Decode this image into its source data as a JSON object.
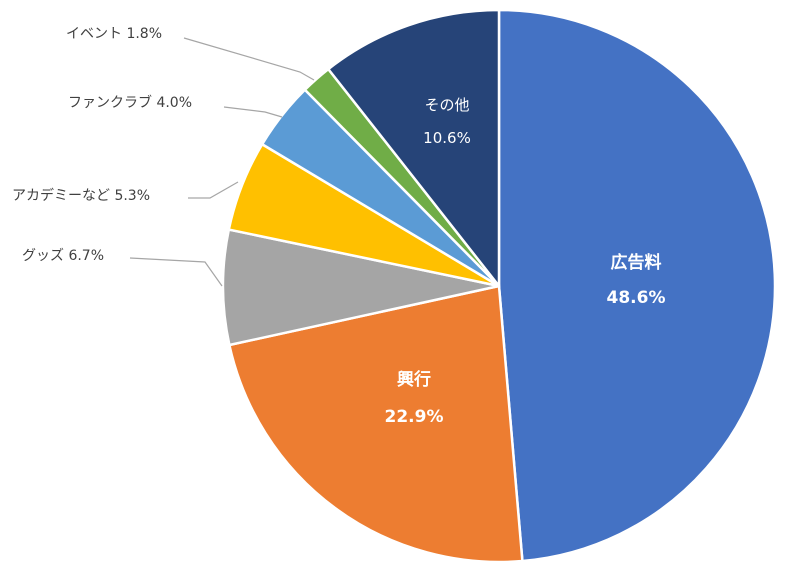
{
  "chart_data": {
    "type": "pie",
    "title": "",
    "start_angle_deg": 0,
    "direction": "clockwise",
    "slices": [
      {
        "label": "広告料",
        "value": 48.6,
        "value_label": "48.6%",
        "color": "#4472C4",
        "label_placement": "inside"
      },
      {
        "label": "興行",
        "value": 22.9,
        "value_label": "22.9%",
        "color": "#ED7D31",
        "label_placement": "inside"
      },
      {
        "label": "グッズ",
        "value": 6.7,
        "value_label": "6.7%",
        "color": "#A5A5A5",
        "label_placement": "outside"
      },
      {
        "label": "アカデミーなど",
        "value": 5.3,
        "value_label": "5.3%",
        "color": "#FFC000",
        "label_placement": "outside"
      },
      {
        "label": "ファンクラブ",
        "value": 4.0,
        "value_label": "4.0%",
        "color": "#5B9BD5",
        "label_placement": "outside"
      },
      {
        "label": "イベント",
        "value": 1.8,
        "value_label": "1.8%",
        "color": "#70AD47",
        "label_placement": "outside"
      },
      {
        "label": "その他",
        "value": 10.6,
        "value_label": "10.6%",
        "color": "#264478",
        "label_placement": "inside"
      }
    ]
  }
}
